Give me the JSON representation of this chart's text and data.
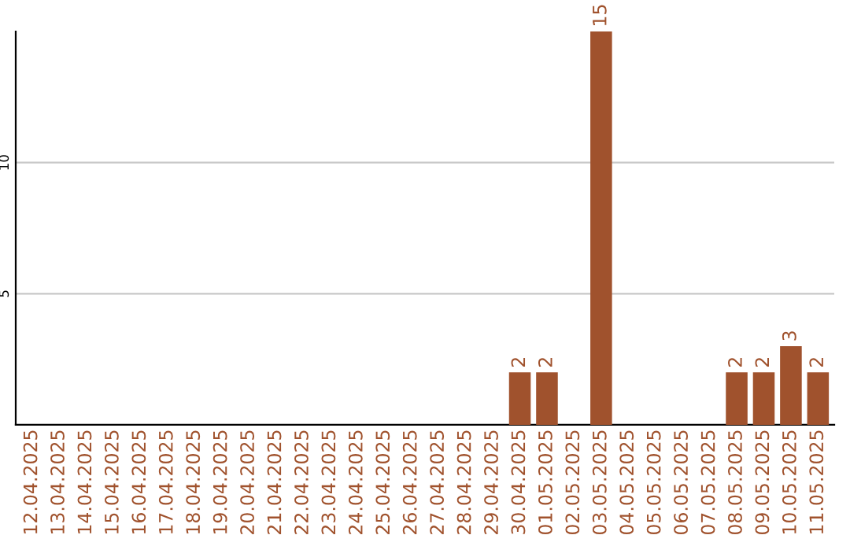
{
  "chart_data": {
    "type": "bar",
    "categories": [
      "12.04.2025",
      "13.04.2025",
      "14.04.2025",
      "15.04.2025",
      "16.04.2025",
      "17.04.2025",
      "18.04.2025",
      "19.04.2025",
      "20.04.2025",
      "21.04.2025",
      "22.04.2025",
      "23.04.2025",
      "24.04.2025",
      "25.04.2025",
      "26.04.2025",
      "27.04.2025",
      "28.04.2025",
      "29.04.2025",
      "30.04.2025",
      "01.05.2025",
      "02.05.2025",
      "03.05.2025",
      "04.05.2025",
      "05.05.2025",
      "06.05.2025",
      "07.05.2025",
      "08.05.2025",
      "09.05.2025",
      "10.05.2025",
      "11.05.2025"
    ],
    "values": [
      0,
      0,
      0,
      0,
      0,
      0,
      0,
      0,
      0,
      0,
      0,
      0,
      0,
      0,
      0,
      0,
      0,
      0,
      2,
      2,
      0,
      15,
      0,
      0,
      0,
      0,
      2,
      2,
      3,
      2
    ],
    "value_labels": [
      null,
      null,
      null,
      null,
      null,
      null,
      null,
      null,
      null,
      null,
      null,
      null,
      null,
      null,
      null,
      null,
      null,
      null,
      "2",
      "2",
      null,
      "15",
      null,
      null,
      null,
      null,
      "2",
      "2",
      "3",
      "2"
    ],
    "color": "#a0522d",
    "ylim": [
      0,
      15
    ],
    "yticks": [
      5,
      10
    ],
    "grid": "y"
  }
}
